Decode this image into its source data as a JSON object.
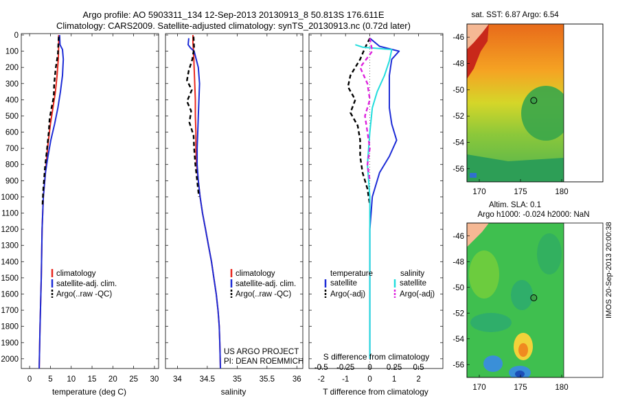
{
  "header": {
    "line1": "Argo profile: AO 5903311_134 12-Sep-2013 20130913_8 50.813S 176.611E",
    "line2": "Climatology: CARS2009. Satellite-adjusted climatology: synTS_20130913.nc (0.72d later)"
  },
  "depth_ticks": [
    "0",
    "100",
    "200",
    "300",
    "400",
    "500",
    "600",
    "700",
    "800",
    "900",
    "1000",
    "1100",
    "1200",
    "1300",
    "1400",
    "1500",
    "1600",
    "1700",
    "1800",
    "1900",
    "2000"
  ],
  "colors": {
    "climatology": "#e8261d",
    "satellite": "#1c2bd6",
    "argo": "#000000",
    "sat_diff_S": "#22dddd",
    "argo_diff_S": "#dd22dd",
    "land": "#f5b894"
  },
  "chart_data": [
    {
      "type": "line",
      "xlabel": "temperature (deg C)",
      "xticks": [
        "0",
        "5",
        "10",
        "15",
        "20",
        "25",
        "30"
      ],
      "xlim": [
        -2,
        31
      ],
      "ylim": [
        2060,
        0
      ],
      "legend": {
        "placement": "bottom-right",
        "entries": [
          "climatology",
          "satellite-adj. clim.",
          "Argo(..raw -QC)"
        ]
      },
      "series": [
        {
          "name": "climatology",
          "color": "#e8261d",
          "points": [
            [
              7.0,
              0
            ],
            [
              7.0,
              50
            ],
            [
              6.9,
              150
            ],
            [
              6.6,
              250
            ],
            [
              6.2,
              350
            ],
            [
              5.6,
              450
            ],
            [
              5.0,
              550
            ],
            [
              4.3,
              700
            ],
            [
              3.8,
              850
            ],
            [
              3.3,
              1000
            ],
            [
              3.0,
              1200
            ],
            [
              2.8,
              1500
            ],
            [
              2.5,
              1800
            ],
            [
              2.3,
              2060
            ]
          ]
        },
        {
          "name": "satellite-adj. clim.",
          "color": "#1c2bd6",
          "points": [
            [
              7.2,
              0
            ],
            [
              7.3,
              60
            ],
            [
              7.9,
              90
            ],
            [
              8.1,
              150
            ],
            [
              7.9,
              250
            ],
            [
              7.4,
              350
            ],
            [
              6.8,
              450
            ],
            [
              6.0,
              550
            ],
            [
              5.1,
              650
            ],
            [
              4.4,
              750
            ],
            [
              3.8,
              850
            ],
            [
              3.3,
              1000
            ],
            [
              3.0,
              1200
            ],
            [
              2.8,
              1500
            ],
            [
              2.5,
              1800
            ],
            [
              2.3,
              2060
            ]
          ]
        },
        {
          "name": "Argo(..raw -QC)",
          "color": "#000000",
          "dash": true,
          "points": [
            [
              7.0,
              10
            ],
            [
              6.9,
              60
            ],
            [
              6.8,
              120
            ],
            [
              6.3,
              200
            ],
            [
              5.9,
              300
            ],
            [
              5.8,
              380
            ],
            [
              5.2,
              460
            ],
            [
              4.8,
              520
            ],
            [
              4.6,
              600
            ],
            [
              4.2,
              700
            ],
            [
              3.7,
              820
            ],
            [
              3.3,
              950
            ],
            [
              3.1,
              1050
            ]
          ]
        }
      ]
    },
    {
      "type": "line",
      "xlabel": "salinity",
      "xticks": [
        "34",
        "34.5",
        "35",
        "35.5",
        "36"
      ],
      "xlim": [
        33.8,
        36.1
      ],
      "ylim": [
        2060,
        0
      ],
      "legend": {
        "placement": "bottom-right",
        "entries": [
          "climatology",
          "satellite-adj. clim.",
          "Argo(..raw -QC)"
        ]
      },
      "annotations": [
        "US ARGO PROJECT",
        "PI: DEAN ROEMMICH"
      ],
      "series": [
        {
          "name": "climatology",
          "color": "#e8261d",
          "points": [
            [
              34.26,
              0
            ],
            [
              34.26,
              50
            ],
            [
              34.27,
              100
            ],
            [
              34.28,
              200
            ],
            [
              34.29,
              300
            ],
            [
              34.3,
              400
            ],
            [
              34.3,
              500
            ],
            [
              34.31,
              600
            ],
            [
              34.31,
              700
            ],
            [
              34.32,
              800
            ],
            [
              34.35,
              900
            ],
            [
              34.38,
              1000
            ],
            [
              34.42,
              1100
            ],
            [
              34.47,
              1200
            ],
            [
              34.52,
              1300
            ],
            [
              34.57,
              1400
            ],
            [
              34.61,
              1500
            ],
            [
              34.65,
              1600
            ],
            [
              34.68,
              1700
            ],
            [
              34.7,
              1800
            ],
            [
              34.71,
              1900
            ],
            [
              34.72,
              2060
            ]
          ]
        },
        {
          "name": "satellite-adj. clim.",
          "color": "#1c2bd6",
          "points": [
            [
              34.19,
              20
            ],
            [
              34.18,
              60
            ],
            [
              34.22,
              80
            ],
            [
              34.28,
              100
            ],
            [
              34.35,
              200
            ],
            [
              34.37,
              300
            ],
            [
              34.36,
              400
            ],
            [
              34.35,
              500
            ],
            [
              34.34,
              600
            ],
            [
              34.33,
              700
            ],
            [
              34.33,
              800
            ],
            [
              34.35,
              900
            ],
            [
              34.38,
              1000
            ],
            [
              34.42,
              1100
            ],
            [
              34.47,
              1200
            ],
            [
              34.52,
              1300
            ],
            [
              34.57,
              1400
            ],
            [
              34.61,
              1500
            ],
            [
              34.65,
              1600
            ],
            [
              34.68,
              1700
            ],
            [
              34.7,
              1800
            ],
            [
              34.71,
              1900
            ],
            [
              34.72,
              2060
            ]
          ]
        },
        {
          "name": "Argo(..raw -QC)",
          "color": "#000000",
          "dash": true,
          "points": [
            [
              34.27,
              10
            ],
            [
              34.28,
              80
            ],
            [
              34.25,
              150
            ],
            [
              34.19,
              220
            ],
            [
              34.16,
              280
            ],
            [
              34.24,
              340
            ],
            [
              34.16,
              410
            ],
            [
              34.23,
              470
            ],
            [
              34.2,
              540
            ],
            [
              34.27,
              620
            ],
            [
              34.28,
              700
            ],
            [
              34.3,
              800
            ],
            [
              34.33,
              900
            ],
            [
              34.36,
              1000
            ]
          ]
        }
      ]
    },
    {
      "type": "line",
      "xlabel": "T difference from climatology",
      "top_xlabel": "S difference from climatology",
      "xticks": [
        "-2",
        "-1",
        "0",
        "1",
        "2"
      ],
      "top_xticks": [
        "-0.5",
        "-0.25",
        "0",
        "0.25",
        "0.5"
      ],
      "xlim": [
        -2.5,
        3.0
      ],
      "ylim": [
        2060,
        0
      ],
      "legend": {
        "placement": "bottom-right",
        "headers": [
          "temperature",
          "salinity"
        ],
        "entries": [
          "satellite",
          "Argo(-adj)",
          "satellite",
          "Argo(-adj)"
        ]
      },
      "series": [
        {
          "name": "satellite",
          "group": "temperature",
          "color": "#1c2bd6",
          "points": [
            [
              0.0,
              20
            ],
            [
              0.4,
              70
            ],
            [
              1.2,
              100
            ],
            [
              0.9,
              150
            ],
            [
              0.8,
              250
            ],
            [
              0.8,
              350
            ],
            [
              0.8,
              450
            ],
            [
              0.9,
              550
            ],
            [
              1.1,
              650
            ],
            [
              0.8,
              750
            ],
            [
              0.4,
              850
            ],
            [
              0.1,
              1000
            ],
            [
              0.0,
              1200
            ],
            [
              0.0,
              2000
            ]
          ]
        },
        {
          "name": "Argo(-adj)",
          "group": "temperature",
          "color": "#000000",
          "dash": true,
          "points": [
            [
              0.0,
              20
            ],
            [
              -0.2,
              80
            ],
            [
              -0.4,
              150
            ],
            [
              -0.8,
              250
            ],
            [
              -0.9,
              320
            ],
            [
              -0.6,
              400
            ],
            [
              -0.8,
              480
            ],
            [
              -0.5,
              560
            ],
            [
              -0.4,
              650
            ],
            [
              -0.4,
              750
            ],
            [
              -0.3,
              850
            ],
            [
              -0.1,
              950
            ],
            [
              0.0,
              1050
            ]
          ]
        },
        {
          "name": "satellite",
          "group": "salinity",
          "color": "#22dddd",
          "points": [
            [
              -0.6,
              60
            ],
            [
              -0.3,
              75
            ],
            [
              0.9,
              90
            ],
            [
              0.8,
              160
            ],
            [
              0.6,
              250
            ],
            [
              0.3,
              350
            ],
            [
              0.1,
              450
            ],
            [
              0.0,
              600
            ],
            [
              -0.1,
              800
            ],
            [
              0.0,
              1000
            ],
            [
              0.0,
              1500
            ],
            [
              0.0,
              2000
            ]
          ]
        },
        {
          "name": "Argo(-adj)",
          "group": "salinity",
          "color": "#dd22dd",
          "dash": true,
          "points": [
            [
              0.0,
              20
            ],
            [
              0.1,
              100
            ],
            [
              -0.4,
              200
            ],
            [
              -0.1,
              300
            ],
            [
              0.0,
              400
            ],
            [
              -0.2,
              500
            ],
            [
              -0.1,
              600
            ],
            [
              0.0,
              700
            ],
            [
              -0.1,
              800
            ],
            [
              0.0,
              900
            ]
          ]
        }
      ]
    },
    {
      "type": "heatmap",
      "title": "sat. SST: 6.87 Argo: 6.54",
      "xticks": [
        "170",
        "175",
        "180"
      ],
      "yticks": [
        "-46",
        "-48",
        "-50",
        "-52",
        "-54",
        "-56"
      ],
      "xlim": [
        168.5,
        185
      ],
      "ylim": [
        -57,
        -45
      ],
      "argo_position": {
        "lon": 176.611,
        "lat": -50.813
      }
    },
    {
      "type": "heatmap",
      "title": "Altim. SLA: 0.1",
      "subtitle": "Argo h1000: -0.024 h2000: NaN",
      "xticks": [
        "170",
        "175",
        "180"
      ],
      "yticks": [
        "-46",
        "-48",
        "-50",
        "-52",
        "-54",
        "-56"
      ],
      "xlim": [
        168.5,
        185
      ],
      "ylim": [
        -57,
        -45
      ],
      "argo_position": {
        "lon": 176.611,
        "lat": -50.813
      }
    }
  ],
  "footer_stamp": "IMOS 20-Sep-2013 20:00:38"
}
